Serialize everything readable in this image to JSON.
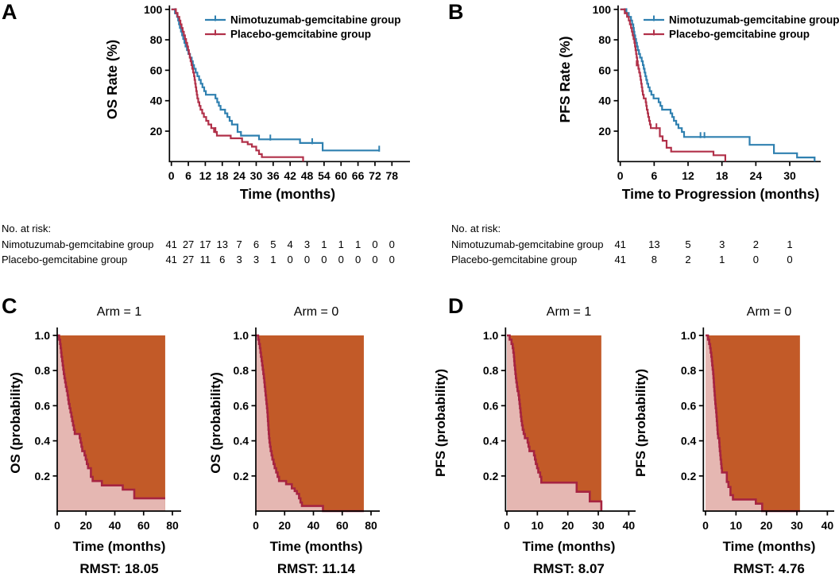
{
  "figure": {
    "panel_labels": {
      "A": "A",
      "B": "B",
      "C": "C",
      "D": "D"
    },
    "colors": {
      "nimotuzumab_blue": "#2F80B0",
      "placebo_red": "#B13049",
      "rmst_curve_red": "#A62441",
      "rmst_area_above_curve": "#C25A28",
      "rmst_area_under_curve": "#E5B7B2",
      "axis_black": "#000000"
    }
  },
  "curves": {
    "os_nimotuzumab": [
      [
        0,
        100
      ],
      [
        1.3,
        97.6
      ],
      [
        2,
        95.1
      ],
      [
        2.4,
        92.7
      ],
      [
        2.7,
        90.2
      ],
      [
        3,
        87.8
      ],
      [
        3.4,
        85.4
      ],
      [
        3.8,
        82.9
      ],
      [
        4.2,
        80.5
      ],
      [
        4.6,
        78
      ],
      [
        5,
        75.6
      ],
      [
        5.5,
        73.2
      ],
      [
        6,
        70.7
      ],
      [
        6.6,
        68.3
      ],
      [
        7.2,
        65.9
      ],
      [
        7.6,
        63.4
      ],
      [
        8,
        61
      ],
      [
        8.6,
        58.5
      ],
      [
        9.2,
        56.1
      ],
      [
        9.8,
        53.7
      ],
      [
        10.4,
        51.2
      ],
      [
        11,
        48.8
      ],
      [
        11.6,
        46.3
      ],
      [
        12.2,
        43.9
      ],
      [
        15.6,
        41.5
      ],
      [
        16.2,
        39
      ],
      [
        16.8,
        36.6
      ],
      [
        17.4,
        34.1
      ],
      [
        19,
        31.7
      ],
      [
        19.8,
        29.3
      ],
      [
        20.6,
        26.8
      ],
      [
        21.4,
        24.4
      ],
      [
        23.4,
        19.5
      ],
      [
        24.6,
        17.1
      ],
      [
        31,
        14.6
      ],
      [
        45.5,
        12.2
      ],
      [
        53.5,
        7.3
      ],
      [
        73.5,
        7.3
      ]
    ],
    "os_placebo": [
      [
        0,
        100
      ],
      [
        1.6,
        97.6
      ],
      [
        2.2,
        95.1
      ],
      [
        2.8,
        92.7
      ],
      [
        3.2,
        90.2
      ],
      [
        3.6,
        87.8
      ],
      [
        4,
        85.4
      ],
      [
        4.4,
        82.9
      ],
      [
        4.8,
        80.5
      ],
      [
        5.2,
        78
      ],
      [
        5.6,
        75.6
      ],
      [
        5.9,
        73.2
      ],
      [
        6.2,
        70.7
      ],
      [
        6.5,
        68.3
      ],
      [
        6.8,
        65.9
      ],
      [
        7.1,
        63.4
      ],
      [
        7.4,
        61
      ],
      [
        7.7,
        58.5
      ],
      [
        8,
        56.1
      ],
      [
        8.2,
        53.7
      ],
      [
        8.4,
        51.2
      ],
      [
        8.6,
        48.8
      ],
      [
        8.8,
        46.3
      ],
      [
        9,
        43.9
      ],
      [
        9.2,
        41.5
      ],
      [
        9.5,
        39
      ],
      [
        9.9,
        36.6
      ],
      [
        10.3,
        34.1
      ],
      [
        10.9,
        31.7
      ],
      [
        11.5,
        29.3
      ],
      [
        12.3,
        26.8
      ],
      [
        13.1,
        24.4
      ],
      [
        14.1,
        22
      ],
      [
        15.1,
        19.5
      ],
      [
        16.1,
        17.1
      ],
      [
        21,
        15.3
      ],
      [
        25,
        12.9
      ],
      [
        27,
        11.4
      ],
      [
        28.5,
        9.8
      ],
      [
        30,
        7.3
      ],
      [
        31,
        4.9
      ],
      [
        32,
        2.9
      ],
      [
        46.6,
        2.9
      ],
      [
        46.6,
        0
      ]
    ],
    "pfs_nimotuzumab": [
      [
        0,
        100
      ],
      [
        0.9,
        97.6
      ],
      [
        1.5,
        95.1
      ],
      [
        1.9,
        92.7
      ],
      [
        2.1,
        90.2
      ],
      [
        2.3,
        87.8
      ],
      [
        2.4,
        85.4
      ],
      [
        2.5,
        82.9
      ],
      [
        2.65,
        80.5
      ],
      [
        2.8,
        78
      ],
      [
        2.95,
        75.6
      ],
      [
        3.1,
        73.2
      ],
      [
        3.3,
        70.7
      ],
      [
        3.5,
        68.3
      ],
      [
        3.8,
        65.9
      ],
      [
        4,
        63.4
      ],
      [
        4.15,
        61
      ],
      [
        4.3,
        58.5
      ],
      [
        4.45,
        56.1
      ],
      [
        4.6,
        53.7
      ],
      [
        4.75,
        51.2
      ],
      [
        4.95,
        48.8
      ],
      [
        5.2,
        46.3
      ],
      [
        5.5,
        43.9
      ],
      [
        5.9,
        41.5
      ],
      [
        6.8,
        39
      ],
      [
        7.1,
        36.6
      ],
      [
        7.4,
        34.1
      ],
      [
        8.9,
        31.7
      ],
      [
        9.2,
        29.3
      ],
      [
        9.5,
        26.8
      ],
      [
        9.9,
        24.4
      ],
      [
        10.3,
        22
      ],
      [
        10.9,
        19.5
      ],
      [
        11.3,
        16.2
      ],
      [
        22.9,
        11
      ],
      [
        27.2,
        5.5
      ],
      [
        31.3,
        2.7
      ],
      [
        34.4,
        2.7
      ],
      [
        34.4,
        0
      ]
    ],
    "pfs_placebo": [
      [
        0,
        100
      ],
      [
        0.8,
        97.6
      ],
      [
        1.2,
        95.1
      ],
      [
        1.5,
        92.7
      ],
      [
        1.7,
        90.2
      ],
      [
        1.9,
        87.8
      ],
      [
        2.05,
        85.4
      ],
      [
        2.2,
        82.9
      ],
      [
        2.35,
        80.5
      ],
      [
        2.5,
        78
      ],
      [
        2.6,
        75.6
      ],
      [
        2.7,
        73.2
      ],
      [
        2.8,
        70.7
      ],
      [
        2.9,
        68.3
      ],
      [
        3,
        65.9
      ],
      [
        3.1,
        63.4
      ],
      [
        3.2,
        61
      ],
      [
        3.35,
        58.5
      ],
      [
        3.5,
        56.1
      ],
      [
        3.6,
        53.7
      ],
      [
        3.7,
        51.2
      ],
      [
        3.8,
        48.8
      ],
      [
        3.9,
        46.3
      ],
      [
        4,
        43.9
      ],
      [
        4.15,
        41.5
      ],
      [
        4.5,
        39
      ],
      [
        4.6,
        36.6
      ],
      [
        4.7,
        34.1
      ],
      [
        4.85,
        31.7
      ],
      [
        4.95,
        29.3
      ],
      [
        5.1,
        26.8
      ],
      [
        5.25,
        24.4
      ],
      [
        5.4,
        22
      ],
      [
        7,
        16.6
      ],
      [
        7.5,
        13.7
      ],
      [
        8.2,
        9.1
      ],
      [
        9,
        6.6
      ],
      [
        16.5,
        4.2
      ],
      [
        18.6,
        4.2
      ],
      [
        18.6,
        0
      ]
    ]
  },
  "censor_marks": {
    "os_nimotuzumab": [
      [
        1.3,
        97.6
      ],
      [
        35,
        14.6
      ],
      [
        49.8,
        12.2
      ],
      [
        73.5,
        7.3
      ]
    ],
    "os_placebo": [
      [
        1.6,
        97.6
      ],
      [
        15.6,
        19.5
      ]
    ],
    "pfs_nimotuzumab": [
      [
        1.1,
        97.6
      ],
      [
        14.2,
        16.2
      ],
      [
        14.9,
        16.2
      ]
    ],
    "pfs_placebo": [
      [
        0.8,
        97.6
      ],
      [
        2.9,
        63.4
      ],
      [
        6.4,
        22
      ]
    ]
  },
  "chart_data": [
    {
      "panel": "A",
      "type": "line",
      "subtype": "kaplan_meier_survival",
      "ylabel": "OS Rate (%)",
      "xlabel": "Time (months)",
      "xticks": [
        0,
        6,
        12,
        18,
        24,
        30,
        36,
        42,
        48,
        54,
        60,
        66,
        72,
        78
      ],
      "yticks": [
        20,
        40,
        60,
        80,
        100
      ],
      "xlim": [
        0,
        85
      ],
      "ylim": [
        0,
        100
      ],
      "grid": false,
      "legend_position": "top-right",
      "series": [
        {
          "name": "Nimotuzumab-gemcitabine group",
          "curve": "os_nimotuzumab",
          "color_key": "nimotuzumab_blue"
        },
        {
          "name": "Placebo-gemcitabine group",
          "curve": "os_placebo",
          "color_key": "placebo_red"
        }
      ],
      "risk_table": {
        "title": "No. at risk:",
        "times": [
          0,
          6,
          12,
          18,
          24,
          30,
          36,
          42,
          48,
          54,
          60,
          66,
          72,
          78
        ],
        "rows": [
          {
            "label": "Nimotuzumab-gemcitabine group",
            "color_key": "nimotuzumab_blue",
            "values": [
              41,
              27,
              17,
              13,
              7,
              6,
              5,
              4,
              3,
              1,
              1,
              1,
              0,
              0
            ]
          },
          {
            "label": "Placebo-gemcitabine group",
            "color_key": "placebo_red",
            "values": [
              41,
              27,
              11,
              6,
              3,
              3,
              1,
              0,
              0,
              0,
              0,
              0,
              0,
              0
            ]
          }
        ]
      }
    },
    {
      "panel": "B",
      "type": "line",
      "subtype": "kaplan_meier_survival",
      "ylabel": "PFS Rate (%)",
      "xlabel": "Time to Progression (months)",
      "xticks": [
        0,
        6,
        12,
        18,
        24,
        30
      ],
      "yticks": [
        20,
        40,
        60,
        80,
        100
      ],
      "xlim": [
        0,
        35.5
      ],
      "ylim": [
        0,
        100
      ],
      "grid": false,
      "legend_position": "top-right",
      "series": [
        {
          "name": "Nimotuzumab-gemcitabine group",
          "curve": "pfs_nimotuzumab",
          "color_key": "nimotuzumab_blue"
        },
        {
          "name": "Placebo-gemcitabine group",
          "curve": "pfs_placebo",
          "color_key": "placebo_red"
        }
      ],
      "risk_table": {
        "title": "No. at risk:",
        "times": [
          0,
          6,
          12,
          18,
          24,
          30
        ],
        "rows": [
          {
            "label": "Nimotuzumab-gemcitabine group",
            "color_key": "nimotuzumab_blue",
            "values": [
              41,
              13,
              5,
              3,
              2,
              1
            ]
          },
          {
            "label": "Placebo-gemcitabine group",
            "color_key": "placebo_red",
            "values": [
              41,
              8,
              2,
              1,
              0,
              0
            ]
          }
        ]
      }
    },
    {
      "panel": "C",
      "type": "area",
      "subtype": "rmst_kaplan_meier",
      "subplots": [
        {
          "title": "Arm = 1",
          "ylabel": "OS (probability)",
          "xlabel": "Time (months)",
          "rmst_label": "RMST: 18.05",
          "rmst_value": 18.05,
          "tau_months": 75,
          "curve": "os_nimotuzumab",
          "xticks": [
            0,
            20,
            40,
            60,
            80
          ],
          "yticks": [
            0.2,
            0.4,
            0.6,
            0.8,
            1.0
          ],
          "ylim": [
            0,
            1
          ]
        },
        {
          "title": "Arm = 0",
          "ylabel": "OS (probability)",
          "xlabel": "Time (months)",
          "rmst_label": "RMST: 11.14",
          "rmst_value": 11.14,
          "tau_months": 75,
          "curve": "os_placebo",
          "xticks": [
            0,
            20,
            40,
            60,
            80
          ],
          "yticks": [
            0.2,
            0.4,
            0.6,
            0.8,
            1.0
          ],
          "ylim": [
            0,
            1
          ]
        }
      ]
    },
    {
      "panel": "D",
      "type": "area",
      "subtype": "rmst_kaplan_meier",
      "subplots": [
        {
          "title": "Arm = 1",
          "ylabel": "PFS (probability)",
          "xlabel": "Time (months)",
          "rmst_label": "RMST: 8.07",
          "rmst_value": 8.07,
          "tau_months": 31,
          "curve": "pfs_nimotuzumab",
          "xticks": [
            0,
            10,
            20,
            30,
            40
          ],
          "yticks": [
            0.2,
            0.4,
            0.6,
            0.8,
            1.0
          ],
          "ylim": [
            0,
            1
          ]
        },
        {
          "title": "Arm = 0",
          "ylabel": "PFS (probability)",
          "xlabel": "Time (months)",
          "rmst_label": "RMST: 4.76",
          "rmst_value": 4.76,
          "tau_months": 31,
          "curve": "pfs_placebo",
          "xticks": [
            0,
            10,
            20,
            30,
            40
          ],
          "yticks": [
            0.2,
            0.4,
            0.6,
            0.8,
            1.0
          ],
          "ylim": [
            0,
            1
          ]
        }
      ]
    }
  ]
}
